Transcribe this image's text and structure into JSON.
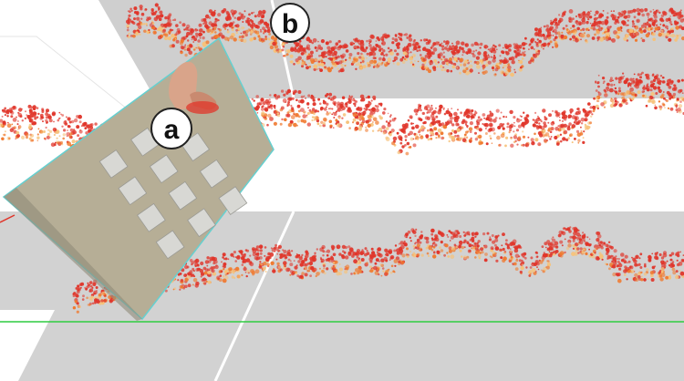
{
  "labels": {
    "a": "a",
    "b": "b"
  },
  "colors": {
    "panel_gray": "#cfcfcf",
    "board_fill": "#b5ad95",
    "board_edge": "#66d0d0",
    "trace_red": "#e0352a",
    "trace_orange": "#f07a30",
    "trace_yellow": "#f6c27a",
    "ground_line": "#2ecc40",
    "divider_white": "#ffffff"
  },
  "icons": {
    "callout_a": "circle-a-icon",
    "callout_b": "circle-b-icon"
  }
}
